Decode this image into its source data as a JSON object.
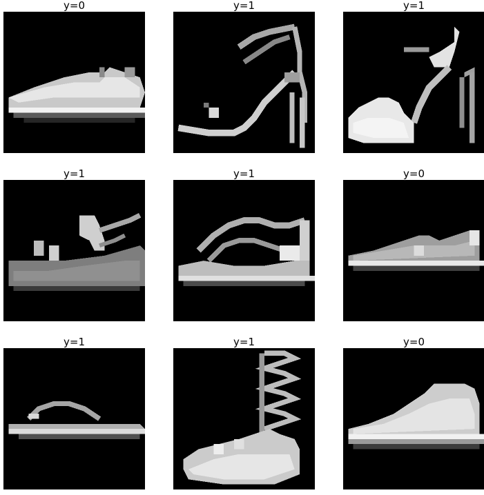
{
  "panels": [
    {
      "label": "y=0",
      "depicts": "sneaker-icon"
    },
    {
      "label": "y=1",
      "depicts": "high-heel-sandal-icon"
    },
    {
      "label": "y=1",
      "depicts": "platform-heel-sandal-icon"
    },
    {
      "label": "y=1",
      "depicts": "wedge-sandal-icon"
    },
    {
      "label": "y=1",
      "depicts": "strappy-sandal-icon"
    },
    {
      "label": "y=0",
      "depicts": "low-sneaker-icon"
    },
    {
      "label": "y=1",
      "depicts": "flip-flop-icon"
    },
    {
      "label": "y=1",
      "depicts": "lace-up-heel-icon"
    },
    {
      "label": "y=0",
      "depicts": "hightop-sneaker-icon"
    }
  ],
  "colors": {
    "background": "#ffffff",
    "image_background": "#000000",
    "title_text": "#000000"
  }
}
